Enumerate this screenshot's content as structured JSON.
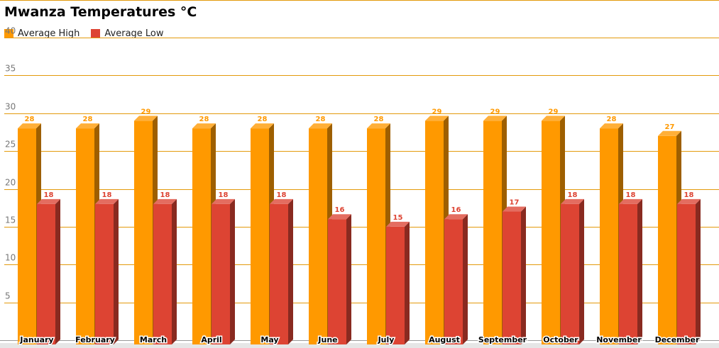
{
  "chart_data": {
    "type": "bar",
    "title": "Mwanza Temperatures °C",
    "categories": [
      "January",
      "February",
      "March",
      "April",
      "May",
      "June",
      "July",
      "August",
      "September",
      "October",
      "November",
      "December"
    ],
    "series": [
      {
        "name": "Average High",
        "color": "#ff9900",
        "values": [
          28,
          28,
          29,
          28,
          28,
          28,
          28,
          29,
          29,
          29,
          28,
          27
        ]
      },
      {
        "name": "Average Low",
        "color": "#dd4433",
        "values": [
          18,
          18,
          18,
          18,
          18,
          16,
          15,
          16,
          17,
          18,
          18,
          18
        ]
      }
    ],
    "ylim": [
      0,
      40
    ],
    "yticks": [
      5,
      10,
      15,
      20,
      25,
      30,
      35,
      40
    ],
    "grid": true,
    "gridColor": "#e39a0c",
    "legend": "top-left",
    "style": "3d-bar"
  }
}
